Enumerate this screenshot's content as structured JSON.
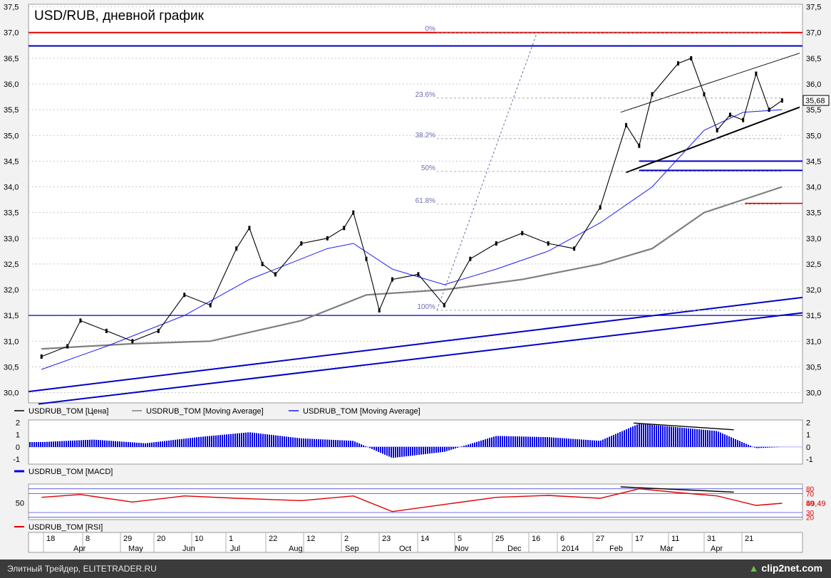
{
  "chart_data": {
    "type": "line",
    "title": "USD/RUB, дневной график",
    "ylim": [
      29.8,
      37.55
    ],
    "y_ticks": [
      "37,5",
      "37,0",
      "36,5",
      "36,0",
      "35,5",
      "35,0",
      "34,5",
      "34,0",
      "33,5",
      "33,0",
      "32,5",
      "32,0",
      "31,5",
      "31,0",
      "30,5",
      "30,0"
    ],
    "x_day_labels": [
      "18",
      "8",
      "29",
      "20",
      "10",
      "1",
      "22",
      "12",
      "2",
      "23",
      "14",
      "5",
      "25",
      "16",
      "6",
      "27",
      "17",
      "11",
      "31",
      "21"
    ],
    "x_month_labels": [
      "Apr",
      "May",
      "Jun",
      "Jul",
      "Aug",
      "Sep",
      "Oct",
      "Nov",
      "Dec",
      "2014",
      "Feb",
      "Mar",
      "Apr"
    ],
    "legend": [
      "USDRUB_TOM [Цена]",
      "USDRUB_TOM [Moving Average]",
      "USDRUB_TOM [Moving Average]"
    ],
    "last_price": "35,68",
    "fib_levels": [
      "0%",
      "23.6%",
      "38.2%",
      "50%",
      "61.8%",
      "100%"
    ],
    "series": [
      {
        "name": "USDRUB_TOM [Цена]",
        "color": "#000000",
        "x": [
          "2013-03-18",
          "2013-04-01",
          "2013-04-08",
          "2013-04-22",
          "2013-05-06",
          "2013-05-20",
          "2013-06-03",
          "2013-06-17",
          "2013-07-01",
          "2013-07-08",
          "2013-07-15",
          "2013-07-22",
          "2013-08-05",
          "2013-08-19",
          "2013-08-28",
          "2013-09-02",
          "2013-09-09",
          "2013-09-16",
          "2013-09-23",
          "2013-10-07",
          "2013-10-21",
          "2013-11-04",
          "2013-11-18",
          "2013-12-02",
          "2013-12-16",
          "2013-12-30",
          "2014-01-13",
          "2014-01-27",
          "2014-02-03",
          "2014-02-10",
          "2014-02-24",
          "2014-03-03",
          "2014-03-10",
          "2014-03-17",
          "2014-03-24",
          "2014-03-31",
          "2014-04-07",
          "2014-04-14",
          "2014-04-21"
        ],
        "y": [
          30.7,
          30.9,
          31.4,
          31.2,
          31.0,
          31.2,
          31.9,
          31.7,
          32.8,
          33.2,
          32.5,
          32.3,
          32.9,
          33.0,
          33.2,
          33.5,
          32.6,
          31.6,
          32.2,
          32.3,
          31.7,
          32.6,
          32.9,
          33.1,
          32.9,
          32.8,
          33.6,
          35.2,
          34.8,
          35.8,
          36.4,
          36.5,
          35.8,
          35.1,
          35.4,
          35.3,
          36.2,
          35.5,
          35.68
        ]
      },
      {
        "name": "USDRUB_TOM [Moving Average]",
        "color": "#7f7f7f",
        "x": [
          "2013-03-18",
          "2013-05-06",
          "2013-06-17",
          "2013-08-05",
          "2013-09-09",
          "2013-10-21",
          "2013-12-02",
          "2014-01-13",
          "2014-02-10",
          "2014-03-10",
          "2014-04-21"
        ],
        "y": [
          30.85,
          30.95,
          31.0,
          31.4,
          31.9,
          32.0,
          32.2,
          32.5,
          32.8,
          33.5,
          34.0
        ]
      },
      {
        "name": "USDRUB_TOM [Moving Average]",
        "color": "#1a1aff",
        "x": [
          "2013-03-18",
          "2013-04-22",
          "2013-06-03",
          "2013-07-08",
          "2013-08-19",
          "2013-09-02",
          "2013-09-23",
          "2013-10-21",
          "2013-11-18",
          "2013-12-16",
          "2014-01-13",
          "2014-02-10",
          "2014-03-10",
          "2014-03-31",
          "2014-04-21"
        ],
        "y": [
          30.45,
          30.9,
          31.5,
          32.2,
          32.8,
          32.9,
          32.4,
          32.1,
          32.4,
          32.75,
          33.3,
          34.0,
          35.1,
          35.45,
          35.5
        ]
      }
    ],
    "macd": {
      "name": "USDRUB_TOM [MACD]",
      "y_ticks": [
        "2",
        "1",
        "0",
        "-1"
      ],
      "ylim": [
        -1.4,
        2.2
      ],
      "x": [
        "2013-03-18",
        "2013-04-15",
        "2013-05-13",
        "2013-06-10",
        "2013-07-08",
        "2013-08-05",
        "2013-09-02",
        "2013-09-23",
        "2013-10-21",
        "2013-11-18",
        "2013-12-16",
        "2014-01-13",
        "2014-02-03",
        "2014-02-24",
        "2014-03-17",
        "2014-04-07",
        "2014-04-21"
      ],
      "y": [
        0.4,
        0.6,
        0.3,
        0.8,
        1.2,
        0.7,
        0.5,
        -0.9,
        -0.4,
        0.9,
        0.8,
        0.5,
        1.9,
        1.6,
        1.3,
        -0.1,
        0.0
      ]
    },
    "rsi": {
      "name": "USDRUB_TOM [RSI]",
      "y_ticks": [
        "80",
        "70",
        "50",
        "30",
        "20"
      ],
      "left_tick": "50",
      "current_value": "49,49",
      "ylim": [
        15,
        90
      ],
      "x": [
        "2013-03-18",
        "2013-04-08",
        "2013-05-06",
        "2013-06-03",
        "2013-07-01",
        "2013-08-05",
        "2013-09-02",
        "2013-09-23",
        "2013-10-21",
        "2013-11-18",
        "2013-12-16",
        "2014-01-13",
        "2014-02-03",
        "2014-02-24",
        "2014-03-17",
        "2014-04-07",
        "2014-04-21"
      ],
      "y": [
        62,
        68,
        52,
        65,
        60,
        55,
        65,
        32,
        47,
        62,
        66,
        60,
        80,
        72,
        65,
        45,
        49.5
      ]
    }
  },
  "footer": {
    "text": "Элитный Трейдер, ELITETRADER.RU",
    "logo_text": "clip2net.com"
  },
  "colors": {
    "price": "#000000",
    "ma_slow": "#7f7f7f",
    "ma_fast": "#1a1aff",
    "resistance": "#e00000",
    "support": "#0000c8",
    "fib": "#6d6dab",
    "macd": "#0000e0",
    "rsi": "#e00000"
  }
}
